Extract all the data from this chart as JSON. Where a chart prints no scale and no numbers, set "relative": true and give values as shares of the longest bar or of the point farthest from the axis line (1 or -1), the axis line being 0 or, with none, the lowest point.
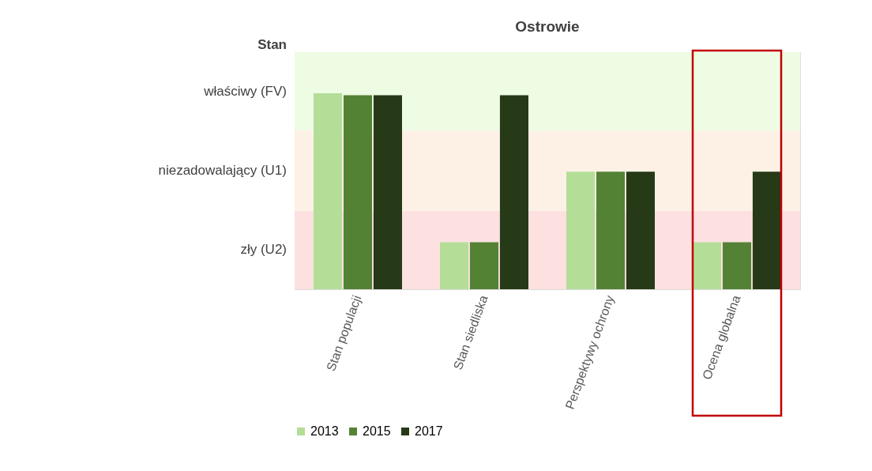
{
  "chart_data": {
    "type": "bar",
    "title": "Ostrowie",
    "ylabel": "Stan",
    "categories": [
      "Stan populacji",
      "Stan siedliska",
      "Perspektywy ochrony",
      "Ocena globalna"
    ],
    "series": [
      {
        "name": "2013",
        "color": "#b4de98",
        "values": [
          1,
          0.24,
          0.6,
          0.24
        ]
      },
      {
        "name": "2015",
        "color": "#548235",
        "values": [
          0.99,
          0.24,
          0.6,
          0.24
        ]
      },
      {
        "name": "2017",
        "color": "#263a17",
        "values": [
          0.99,
          0.99,
          0.6,
          0.6
        ]
      }
    ],
    "relative": true,
    "bands": [
      {
        "axis": "y",
        "from": 0,
        "to": 0.4,
        "label": "zły (U2)",
        "color": "#fde0e0"
      },
      {
        "axis": "y",
        "from": 0.4,
        "to": 0.81,
        "label": "niezadowalający (U1)",
        "color": "#fdf1e6"
      },
      {
        "axis": "y",
        "from": 0.81,
        "to": 1.21,
        "label": "właściwy (FV)",
        "color": "#eefce3"
      }
    ],
    "legend": "bottom"
  }
}
